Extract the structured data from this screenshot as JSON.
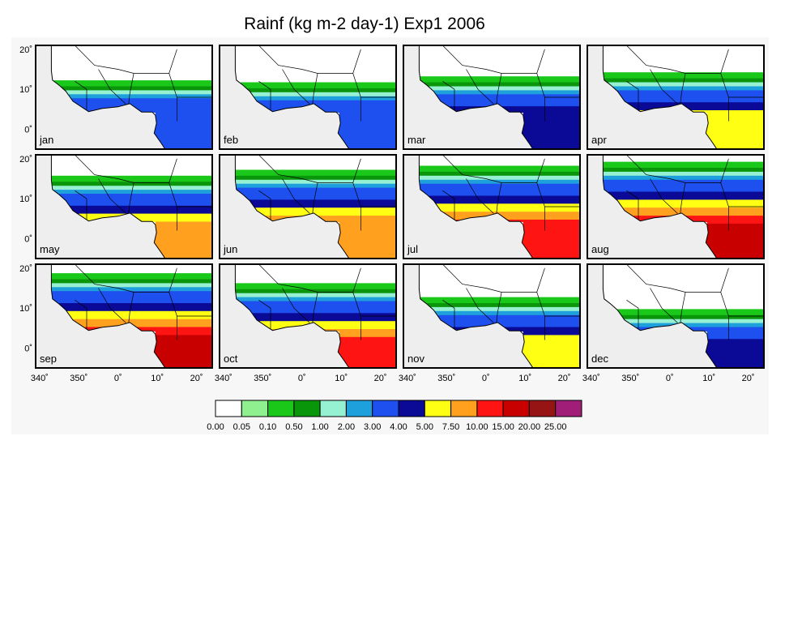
{
  "chart_data": {
    "type": "heatmap",
    "title": "Rainf (kg m-2 day-1) Exp1 2006",
    "panels": [
      "jan",
      "feb",
      "mar",
      "apr",
      "may",
      "jun",
      "jul",
      "aug",
      "sep",
      "oct",
      "nov",
      "dec"
    ],
    "x_ticks": [
      "340˚",
      "350˚",
      "0˚",
      "10˚",
      "20˚"
    ],
    "y_ticks": [
      "20˚",
      "10˚",
      "0˚"
    ],
    "colorbar": {
      "levels": [
        "0.00",
        "0.05",
        "0.10",
        "0.50",
        "1.00",
        "2.00",
        "3.00",
        "4.00",
        "5.00",
        "7.50",
        "10.00",
        "15.00",
        "20.00",
        "25.00"
      ],
      "colors": [
        "#ffffff",
        "#8ff08f",
        "#19c819",
        "#0a960a",
        "#96f0d2",
        "#1ea0dc",
        "#1e50f0",
        "#0a0a96",
        "#ffff14",
        "#ffa01e",
        "#ff1414",
        "#c80000",
        "#961414",
        "#a01e78"
      ]
    },
    "band_centers_lat": [
      8,
      7.5,
      9,
      10,
      11.5,
      13,
      14,
      15,
      14.5,
      12,
      8.5,
      5.5
    ],
    "band_intensity_level": [
      6,
      6,
      7,
      8,
      9,
      9,
      10,
      11,
      11,
      10,
      8,
      7
    ]
  }
}
